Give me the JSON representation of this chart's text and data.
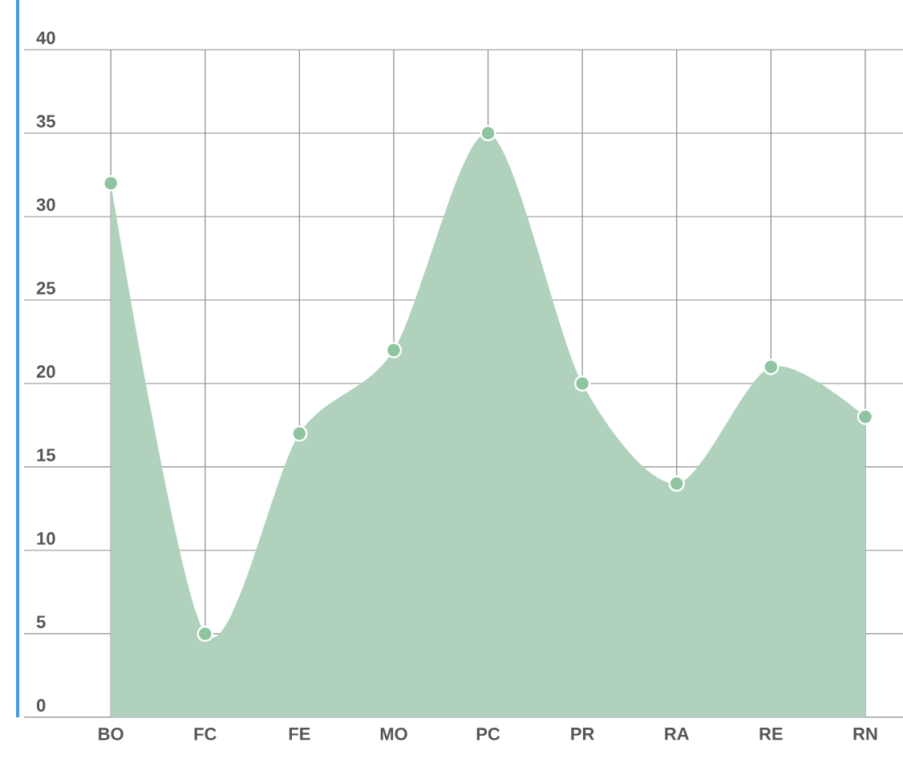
{
  "chart_data": {
    "type": "area",
    "categories": [
      "BO",
      "FC",
      "FE",
      "MO",
      "PC",
      "PR",
      "RA",
      "RE",
      "RN"
    ],
    "values": [
      32,
      5,
      17,
      22,
      35,
      20,
      14,
      21,
      18
    ],
    "color": "#b0d1bc",
    "ylim": [
      0,
      40
    ],
    "yticks": [
      0,
      5,
      10,
      15,
      20,
      25,
      30,
      35,
      40
    ],
    "grid": true,
    "marker": "circle"
  }
}
